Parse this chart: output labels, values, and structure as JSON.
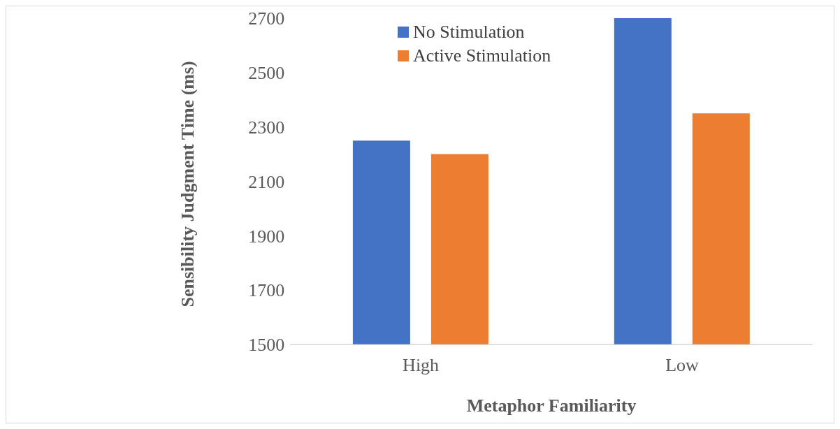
{
  "chart_data": {
    "type": "bar",
    "xlabel": "Metaphor Familiarity",
    "ylabel": "Sensibility Judgment Time (ms)",
    "categories": [
      "High",
      "Low"
    ],
    "series": [
      {
        "name": "No Stimulation",
        "color": "#4472c4",
        "values": [
          2250,
          2700
        ]
      },
      {
        "name": "Active Stimulation",
        "color": "#ed7d31",
        "values": [
          2200,
          2350
        ]
      }
    ],
    "ylim": [
      1500,
      2700
    ],
    "yticks": [
      1500,
      1700,
      1900,
      2100,
      2300,
      2500,
      2700
    ],
    "grid": false,
    "legend": "top left"
  }
}
